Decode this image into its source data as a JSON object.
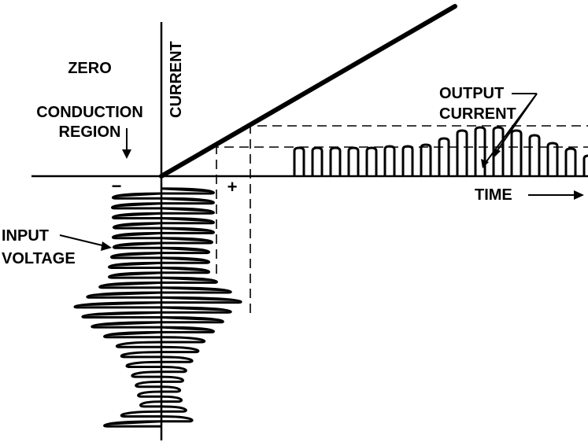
{
  "labels": {
    "zero_conduction_line1": "ZERO",
    "zero_conduction_line2": "CONDUCTION",
    "zero_conduction_line3": "REGION",
    "current_axis": "CURRENT",
    "input_voltage_line1": "INPUT",
    "input_voltage_line2": "VOLTAGE",
    "output_current_line1": "OUTPUT",
    "output_current_line2": "CURRENT",
    "time_axis": "TIME",
    "minus_sign": "−",
    "plus_sign": "+"
  },
  "colors": {
    "ink": "#000000",
    "background": "#ffffff"
  }
}
